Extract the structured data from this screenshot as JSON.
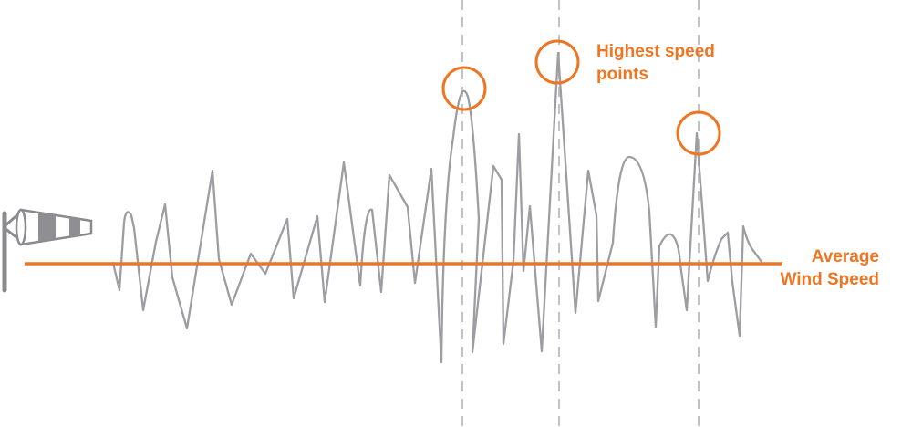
{
  "colors": {
    "accent": "#ee7623",
    "signal": "#9d9da2",
    "guide": "#c2c2c6",
    "sock_stripe": "#8e8e93",
    "pole": "#8a8a8f"
  },
  "icons": {
    "windsock": "windsock-icon"
  },
  "labels": {
    "highest_speed_line1": "Highest speed",
    "highest_speed_line2": "points",
    "average_line1": "Average",
    "average_line2": "Wind Speed"
  }
}
